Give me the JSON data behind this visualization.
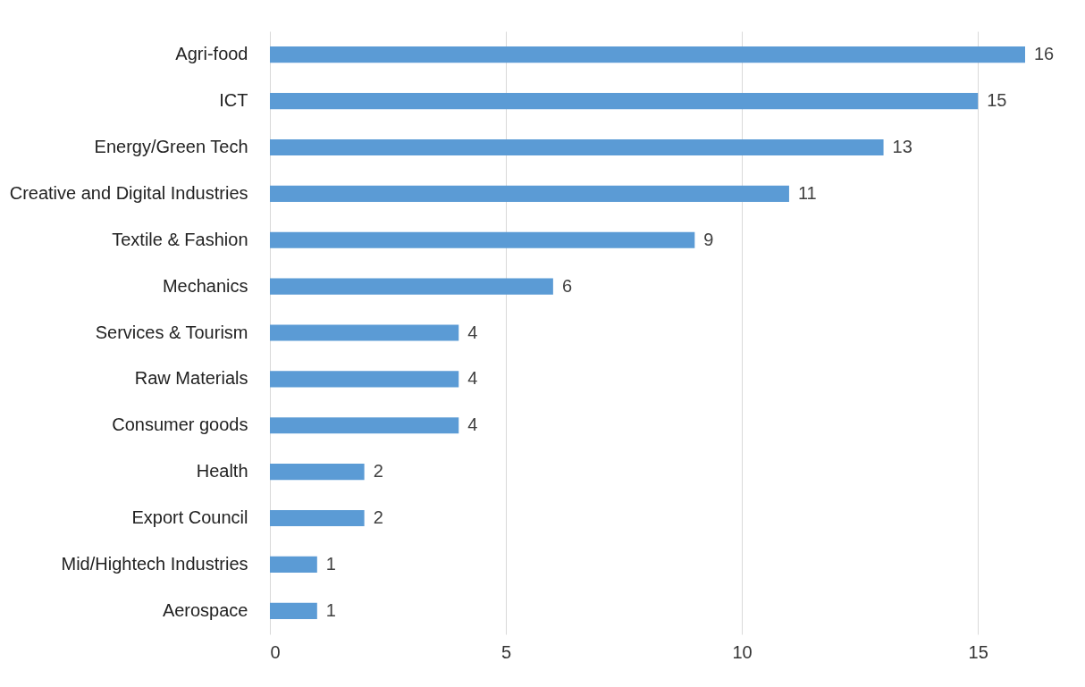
{
  "chart_data": {
    "type": "bar",
    "orientation": "horizontal",
    "categories": [
      "Agri-food",
      "ICT",
      "Energy/Green Tech",
      "Creative and Digital Industries",
      "Textile & Fashion",
      "Mechanics",
      "Services & Tourism",
      "Raw Materials",
      "Consumer goods",
      "Health",
      "Export Council",
      "Mid/Hightech Industries",
      "Aerospace"
    ],
    "values": [
      16,
      15,
      13,
      11,
      9,
      6,
      4,
      4,
      4,
      2,
      2,
      1,
      1
    ],
    "color": "#5b9bd5",
    "xlim": [
      0,
      16
    ],
    "xticks": [
      0,
      5,
      10,
      15
    ],
    "grid": "x",
    "data_labels": true
  }
}
